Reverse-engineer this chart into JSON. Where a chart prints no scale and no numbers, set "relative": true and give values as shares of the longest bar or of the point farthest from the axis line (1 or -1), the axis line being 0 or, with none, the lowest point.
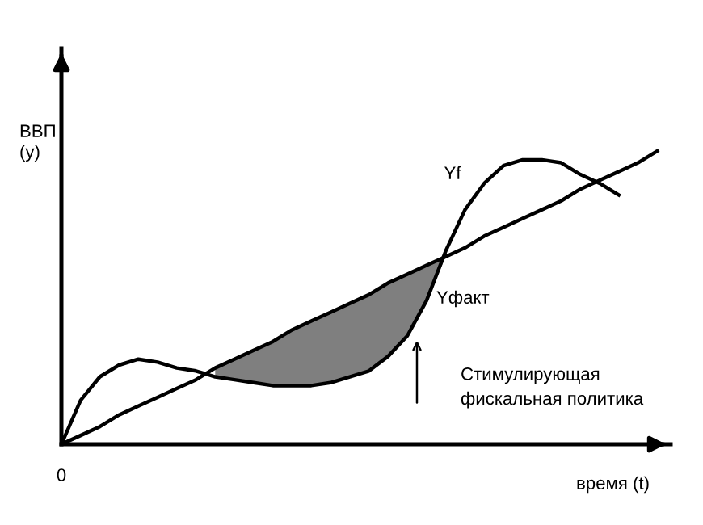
{
  "chart_data": {
    "type": "line",
    "relative": true,
    "xlabel": "время (t)",
    "ylabel": "ВВП\n(y)",
    "categories": [
      null,
      null,
      null,
      null,
      null,
      null,
      null,
      null,
      null,
      null,
      null,
      null,
      null,
      null,
      null,
      null,
      null,
      null,
      null,
      null,
      null,
      null,
      null,
      null,
      null,
      null,
      null,
      null,
      null,
      null,
      null,
      null
    ],
    "series": [
      {
        "color": "#000000",
        "values": [
          0,
          0.03,
          0.06,
          0.1,
          0.13,
          0.16,
          0.19,
          0.22,
          0.26,
          0.29,
          0.32,
          0.35,
          0.39,
          0.42,
          0.45,
          0.48,
          0.51,
          0.55,
          0.58,
          0.61,
          0.64,
          0.67,
          0.71,
          0.74,
          0.77,
          0.8,
          0.83,
          0.87,
          0.9,
          0.93,
          0.96,
          1.0
        ]
      },
      {
        "color": "#000000",
        "values": [
          0,
          0.15,
          0.23,
          0.27,
          0.29,
          0.28,
          0.26,
          0.25,
          0.23,
          0.22,
          0.21,
          0.2,
          0.2,
          0.2,
          0.21,
          0.23,
          0.25,
          0.3,
          0.37,
          0.49,
          0.66,
          0.8,
          0.89,
          0.95,
          0.97,
          0.97,
          0.96,
          0.92,
          0.89,
          0.85,
          null,
          null
        ],
        "lower": [
          null,
          null,
          null,
          null,
          null,
          null,
          null,
          null,
          0.23,
          0.22,
          0.21,
          0.2,
          0.2,
          0.2,
          0.21,
          0.23,
          0.25,
          0.3,
          0.37,
          0.49,
          0.64,
          null,
          null,
          null,
          null,
          null,
          null,
          null,
          null,
          null,
          null,
          null
        ],
        "upper": [
          null,
          null,
          null,
          null,
          null,
          null,
          null,
          null,
          0.26,
          0.29,
          0.32,
          0.35,
          0.39,
          0.42,
          0.45,
          0.48,
          0.51,
          0.55,
          0.58,
          0.61,
          0.64,
          null,
          null,
          null,
          null,
          null,
          null,
          null,
          null,
          null,
          null,
          null
        ]
      }
    ],
    "annotations": [
      "Yf",
      "Yфакт",
      "Стимулирующая\nфискальная политика",
      "0"
    ],
    "grid": false,
    "legend": false,
    "marker": "none",
    "line_style": "solid"
  }
}
